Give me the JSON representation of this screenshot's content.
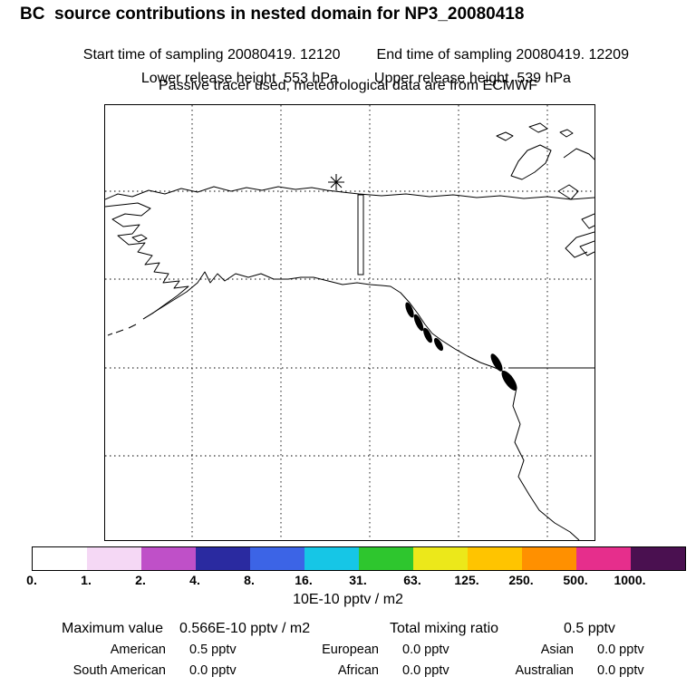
{
  "header": {
    "title": "BC  source contributions in nested domain for NP3_20080418",
    "line2_left": "Start time of sampling 20080419. 12120",
    "line2_right": "End time of sampling 20080419. 12209",
    "line3_left": "Lower release height  553 hPa",
    "line3_right": "Upper release height  539 hPa",
    "line4": "Passive tracer used, meteorological data are from ECMWF"
  },
  "colorbar": {
    "unit_label": "10E-10 pptv / m2",
    "tick_labels": [
      "0.",
      "1.",
      "2.",
      "4.",
      "8.",
      "16.",
      "31.",
      "63.",
      "125.",
      "250.",
      "500.",
      "1000."
    ],
    "segment_colors": [
      "#ffffff",
      "#f5d8f5",
      "#bf50c8",
      "#2a2aa0",
      "#3c64e6",
      "#16c6e6",
      "#2ec62e",
      "#ece81a",
      "#ffc400",
      "#ff9000",
      "#e62e8c",
      "#4a1050"
    ]
  },
  "stats": {
    "max_label": "Maximum value",
    "max_value": "0.566E-10 pptv / m2",
    "total_label": "Total mixing ratio",
    "total_value": "0.5 pptv",
    "contributions": [
      {
        "region": "American",
        "value": "0.5 pptv"
      },
      {
        "region": "European",
        "value": "0.0 pptv"
      },
      {
        "region": "Asian",
        "value": "0.0 pptv"
      },
      {
        "region": "South American",
        "value": "0.0 pptv"
      },
      {
        "region": "African",
        "value": "0.0 pptv"
      },
      {
        "region": "Australian",
        "value": "0.0 pptv"
      }
    ]
  },
  "chart_data": {
    "type": "heatmap",
    "title": "BC source contributions in nested domain for NP3_20080418",
    "region_shown": "Alaska / northwestern North America with release marker",
    "colorbar_levels": [
      0,
      1,
      2,
      4,
      8,
      16,
      31,
      63,
      125,
      250,
      500,
      1000
    ],
    "colorbar_unit": "10E-10 pptv / m2",
    "maximum_value": "0.566E-10 pptv / m2",
    "total_mixing_ratio_pptv": 0.5,
    "contributions_pptv": {
      "American": 0.5,
      "European": 0.0,
      "Asian": 0.0,
      "South American": 0.0,
      "African": 0.0,
      "Australian": 0.0
    }
  }
}
